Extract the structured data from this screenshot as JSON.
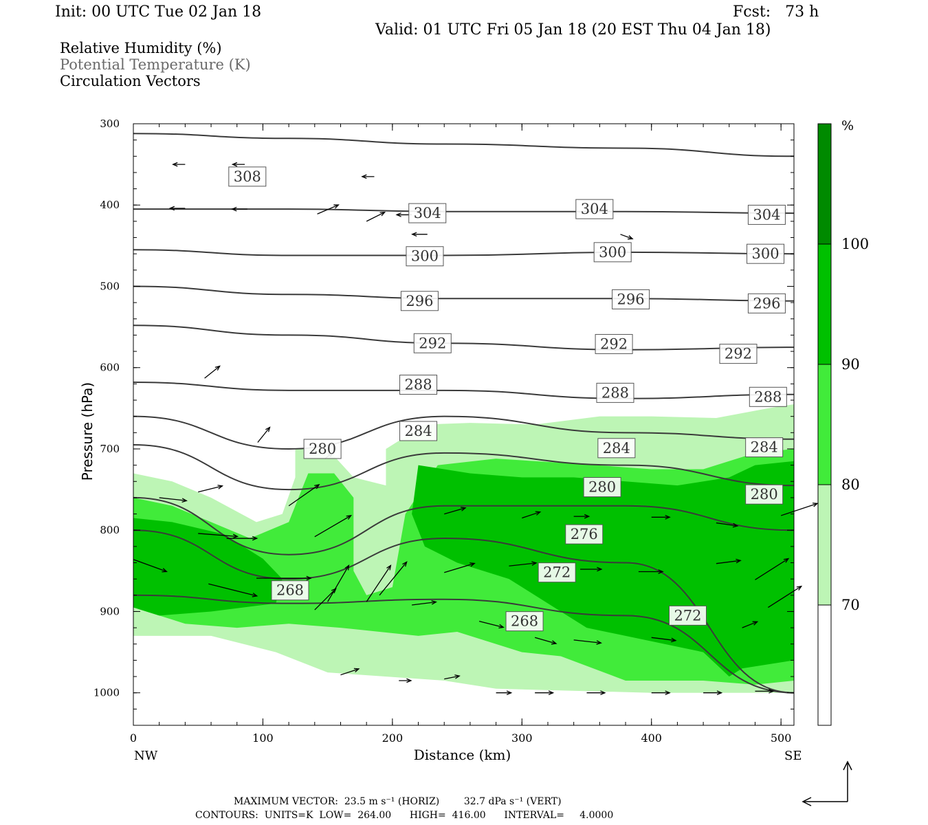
{
  "header": {
    "init": "Init: 00 UTC Tue 02 Jan 18",
    "fcst": "Fcst:   73 h",
    "valid": "Valid: 01 UTC Fri 05 Jan 18 (20 EST Thu 04 Jan 18)"
  },
  "legend": {
    "rh": "Relative Humidity (%)",
    "theta": "Potential Temperature (K)",
    "vectors": "Circulation Vectors"
  },
  "footer": {
    "max_vector": "MAXIMUM VECTOR:  23.5 m s⁻¹ (HORIZ)        32.7 dPa s⁻¹ (VERT)",
    "contours": "CONTOURS:  UNITS=K  LOW=  264.00      HIGH=  416.00      INTERVAL=     4.0000"
  },
  "colors": {
    "rh70": "#bdf5b5",
    "rh80": "#41eb3a",
    "rh90": "#00c000",
    "rh100": "#008a00",
    "contour": "#3a3a3a",
    "vector": "#000000"
  },
  "chart_data": {
    "type": "heatmap",
    "title": "",
    "xlabel": "Distance (km)",
    "ylabel": "Pressure (hPa)",
    "xlim": [
      0,
      510
    ],
    "ylim": [
      1040,
      300
    ],
    "xticks": [
      "0",
      "100",
      "200",
      "300",
      "400",
      "500"
    ],
    "xtick_values": [
      0,
      100,
      200,
      300,
      400,
      500
    ],
    "yticks": [
      "300",
      "400",
      "500",
      "600",
      "700",
      "800",
      "900",
      "1000"
    ],
    "ytick_values": [
      300,
      400,
      500,
      600,
      700,
      800,
      900,
      1000
    ],
    "x_end_labels": {
      "left": "NW",
      "right": "SE"
    },
    "colorbar": {
      "unit": "%",
      "levels": [
        70,
        80,
        90,
        100
      ],
      "tick_labels": [
        "70",
        "80",
        "90",
        "100"
      ]
    },
    "rh_regions": [
      {
        "level": 70,
        "polygon": [
          [
            0,
            835
          ],
          [
            0,
            730
          ],
          [
            30,
            740
          ],
          [
            60,
            760
          ],
          [
            95,
            790
          ],
          [
            115,
            780
          ],
          [
            125,
            735
          ],
          [
            125,
            700
          ],
          [
            150,
            700
          ],
          [
            170,
            735
          ],
          [
            195,
            745
          ],
          [
            195,
            700
          ],
          [
            225,
            670
          ],
          [
            260,
            668
          ],
          [
            310,
            670
          ],
          [
            360,
            660
          ],
          [
            400,
            660
          ],
          [
            450,
            662
          ],
          [
            490,
            650
          ],
          [
            510,
            645
          ],
          [
            510,
            1000
          ],
          [
            400,
            1000
          ],
          [
            280,
            995
          ],
          [
            240,
            985
          ],
          [
            150,
            975
          ],
          [
            110,
            950
          ],
          [
            60,
            930
          ],
          [
            0,
            930
          ]
        ]
      },
      {
        "level": 80,
        "polygon": [
          [
            0,
            810
          ],
          [
            0,
            760
          ],
          [
            30,
            770
          ],
          [
            60,
            790
          ],
          [
            90,
            810
          ],
          [
            120,
            790
          ],
          [
            135,
            730
          ],
          [
            155,
            730
          ],
          [
            170,
            760
          ],
          [
            170,
            850
          ],
          [
            180,
            880
          ],
          [
            200,
            870
          ],
          [
            210,
            780
          ],
          [
            235,
            720
          ],
          [
            280,
            712
          ],
          [
            340,
            718
          ],
          [
            400,
            725
          ],
          [
            440,
            725
          ],
          [
            480,
            705
          ],
          [
            510,
            700
          ],
          [
            510,
            985
          ],
          [
            480,
            990
          ],
          [
            440,
            985
          ],
          [
            380,
            985
          ],
          [
            330,
            955
          ],
          [
            300,
            950
          ],
          [
            250,
            925
          ],
          [
            220,
            930
          ],
          [
            160,
            920
          ],
          [
            120,
            915
          ],
          [
            80,
            920
          ],
          [
            40,
            915
          ],
          [
            0,
            895
          ]
        ]
      },
      {
        "level": 90,
        "polygon": [
          [
            0,
            830
          ],
          [
            0,
            785
          ],
          [
            30,
            790
          ],
          [
            70,
            805
          ],
          [
            100,
            835
          ],
          [
            115,
            860
          ],
          [
            110,
            890
          ],
          [
            60,
            900
          ],
          [
            20,
            905
          ],
          [
            0,
            895
          ]
        ]
      },
      {
        "level": 90,
        "polygon": [
          [
            220,
            720
          ],
          [
            260,
            730
          ],
          [
            300,
            735
          ],
          [
            340,
            735
          ],
          [
            380,
            740
          ],
          [
            420,
            745
          ],
          [
            460,
            735
          ],
          [
            480,
            720
          ],
          [
            510,
            715
          ],
          [
            510,
            960
          ],
          [
            470,
            970
          ],
          [
            460,
            980
          ],
          [
            440,
            950
          ],
          [
            380,
            930
          ],
          [
            350,
            920
          ],
          [
            330,
            900
          ],
          [
            290,
            860
          ],
          [
            250,
            840
          ],
          [
            225,
            820
          ],
          [
            215,
            780
          ]
        ]
      }
    ],
    "contours_K": [
      {
        "value": 308,
        "y": [
          312,
          318,
          325,
          330,
          340
        ]
      },
      {
        "value": 304,
        "y": [
          405,
          405,
          408,
          408,
          410
        ]
      },
      {
        "value": 300,
        "y": [
          455,
          462,
          462,
          458,
          460
        ]
      },
      {
        "value": 296,
        "y": [
          500,
          510,
          515,
          515,
          518
        ]
      },
      {
        "value": 292,
        "y": [
          548,
          560,
          570,
          578,
          575
        ]
      },
      {
        "value": 288,
        "y": [
          618,
          628,
          628,
          638,
          633
        ]
      },
      {
        "value": 284,
        "y": [
          660,
          700,
          660,
          680,
          688
        ]
      },
      {
        "value": 280,
        "y": [
          695,
          750,
          705,
          720,
          745
        ]
      },
      {
        "value": 276,
        "y": [
          760,
          830,
          770,
          770,
          800
        ]
      },
      {
        "value": 272,
        "y": [
          800,
          860,
          810,
          840,
          1000
        ]
      },
      {
        "value": 268,
        "y": [
          880,
          890,
          885,
          905,
          1000
        ]
      }
    ],
    "contour_x": [
      0,
      120,
      240,
      380,
      510
    ],
    "contour_labels": [
      {
        "text": "308",
        "x": 88,
        "p": 365
      },
      {
        "text": "304",
        "x": 227,
        "p": 410
      },
      {
        "text": "304",
        "x": 356,
        "p": 405
      },
      {
        "text": "304",
        "x": 489,
        "p": 412
      },
      {
        "text": "300",
        "x": 225,
        "p": 463
      },
      {
        "text": "300",
        "x": 370,
        "p": 458
      },
      {
        "text": "300",
        "x": 488,
        "p": 460
      },
      {
        "text": "296",
        "x": 221,
        "p": 518
      },
      {
        "text": "296",
        "x": 384,
        "p": 516
      },
      {
        "text": "296",
        "x": 489,
        "p": 521
      },
      {
        "text": "292",
        "x": 231,
        "p": 570
      },
      {
        "text": "292",
        "x": 371,
        "p": 571
      },
      {
        "text": "292",
        "x": 467,
        "p": 583
      },
      {
        "text": "288",
        "x": 220,
        "p": 621
      },
      {
        "text": "288",
        "x": 372,
        "p": 631
      },
      {
        "text": "288",
        "x": 490,
        "p": 636
      },
      {
        "text": "284",
        "x": 220,
        "p": 678
      },
      {
        "text": "284",
        "x": 373,
        "p": 699
      },
      {
        "text": "284",
        "x": 487,
        "p": 698
      },
      {
        "text": "280",
        "x": 146,
        "p": 700
      },
      {
        "text": "280",
        "x": 362,
        "p": 747
      },
      {
        "text": "280",
        "x": 487,
        "p": 756
      },
      {
        "text": "276",
        "x": 348,
        "p": 805
      },
      {
        "text": "272",
        "x": 327,
        "p": 852
      },
      {
        "text": "272",
        "x": 428,
        "p": 905
      },
      {
        "text": "268",
        "x": 121,
        "p": 874
      },
      {
        "text": "268",
        "x": 302,
        "p": 912
      }
    ],
    "vectors": [
      [
        40,
        350,
        -8,
        0
      ],
      [
        86,
        350,
        -8,
        0
      ],
      [
        186,
        365,
        -8,
        0
      ],
      [
        215,
        412,
        -10,
        0
      ],
      [
        227,
        436,
        -10,
        0
      ],
      [
        40,
        404,
        -10,
        0
      ],
      [
        88,
        405,
        -10,
        0
      ],
      [
        142,
        411,
        14,
        -6
      ],
      [
        180,
        420,
        12,
        -6
      ],
      [
        376,
        436,
        8,
        3
      ],
      [
        20,
        611,
        0,
        0
      ],
      [
        55,
        613,
        10,
        -8
      ],
      [
        96,
        692,
        8,
        -10
      ],
      [
        148,
        712,
        5,
        -4
      ],
      [
        20,
        760,
        18,
        2
      ],
      [
        50,
        753,
        16,
        -4
      ],
      [
        120,
        770,
        20,
        -14
      ],
      [
        140,
        808,
        24,
        -14
      ],
      [
        0,
        836,
        22,
        8
      ],
      [
        50,
        804,
        26,
        2
      ],
      [
        72,
        810,
        20,
        0
      ],
      [
        58,
        866,
        32,
        8
      ],
      [
        95,
        859,
        36,
        0
      ],
      [
        140,
        898,
        14,
        -14
      ],
      [
        150,
        888,
        14,
        -24
      ],
      [
        180,
        888,
        16,
        -24
      ],
      [
        190,
        880,
        18,
        -22
      ],
      [
        215,
        892,
        16,
        -2
      ],
      [
        267,
        912,
        16,
        4
      ],
      [
        310,
        932,
        14,
        4
      ],
      [
        340,
        935,
        18,
        2
      ],
      [
        400,
        932,
        16,
        2
      ],
      [
        240,
        852,
        20,
        -6
      ],
      [
        290,
        844,
        18,
        -2
      ],
      [
        345,
        848,
        14,
        0
      ],
      [
        390,
        851,
        16,
        0
      ],
      [
        450,
        841,
        16,
        -2
      ],
      [
        240,
        780,
        14,
        -4
      ],
      [
        300,
        785,
        12,
        -4
      ],
      [
        340,
        783,
        10,
        0
      ],
      [
        400,
        784,
        12,
        0
      ],
      [
        450,
        791,
        14,
        2
      ],
      [
        500,
        782,
        24,
        -8
      ],
      [
        480,
        861,
        22,
        -14
      ],
      [
        490,
        895,
        22,
        -14
      ],
      [
        470,
        920,
        10,
        -4
      ],
      [
        240,
        983,
        10,
        -2
      ],
      [
        280,
        1000,
        10,
        0
      ],
      [
        310,
        1000,
        12,
        0
      ],
      [
        350,
        1000,
        12,
        0
      ],
      [
        400,
        1000,
        12,
        0
      ],
      [
        440,
        1000,
        12,
        0
      ],
      [
        480,
        998,
        12,
        0
      ],
      [
        160,
        978,
        12,
        -4
      ],
      [
        205,
        985,
        8,
        0
      ]
    ]
  }
}
